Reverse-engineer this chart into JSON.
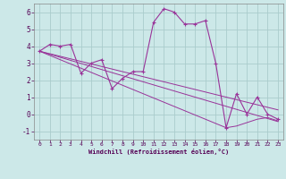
{
  "background_color": "#cce8e8",
  "grid_color": "#aacccc",
  "line_color": "#993399",
  "xlabel": "Windchill (Refroidissement éolien,°C)",
  "xlim": [
    -0.5,
    23.5
  ],
  "ylim": [
    -1.5,
    6.5
  ],
  "yticks": [
    -1,
    0,
    1,
    2,
    3,
    4,
    5,
    6
  ],
  "xticks": [
    0,
    1,
    2,
    3,
    4,
    5,
    6,
    7,
    8,
    9,
    10,
    11,
    12,
    13,
    14,
    15,
    16,
    17,
    18,
    19,
    20,
    21,
    22,
    23
  ],
  "series_main": [
    3.7,
    4.1,
    4.0,
    4.1,
    2.4,
    3.0,
    3.2,
    1.5,
    2.1,
    2.5,
    2.5,
    5.4,
    6.2,
    6.0,
    5.3,
    5.3,
    5.5,
    3.0,
    -0.8,
    1.2,
    0.0,
    1.0,
    0.0,
    -0.3
  ],
  "series_trend1": [
    3.7,
    3.55,
    3.4,
    3.25,
    3.1,
    2.95,
    2.8,
    2.65,
    2.5,
    2.35,
    2.2,
    2.05,
    1.9,
    1.75,
    1.6,
    1.45,
    1.3,
    1.15,
    1.0,
    0.85,
    0.7,
    0.55,
    0.4,
    0.25
  ],
  "series_trend2": [
    3.7,
    3.52,
    3.34,
    3.16,
    2.98,
    2.8,
    2.62,
    2.44,
    2.26,
    2.08,
    1.9,
    1.72,
    1.54,
    1.36,
    1.18,
    1.0,
    0.82,
    0.64,
    0.46,
    0.28,
    0.1,
    -0.08,
    -0.26,
    -0.44
  ],
  "series_trend3": [
    3.7,
    3.45,
    3.2,
    2.95,
    2.7,
    2.45,
    2.2,
    1.95,
    1.7,
    1.45,
    1.2,
    0.95,
    0.7,
    0.45,
    0.2,
    -0.05,
    -0.3,
    -0.55,
    -0.8,
    -0.7,
    -0.5,
    -0.3,
    -0.2,
    -0.4
  ]
}
